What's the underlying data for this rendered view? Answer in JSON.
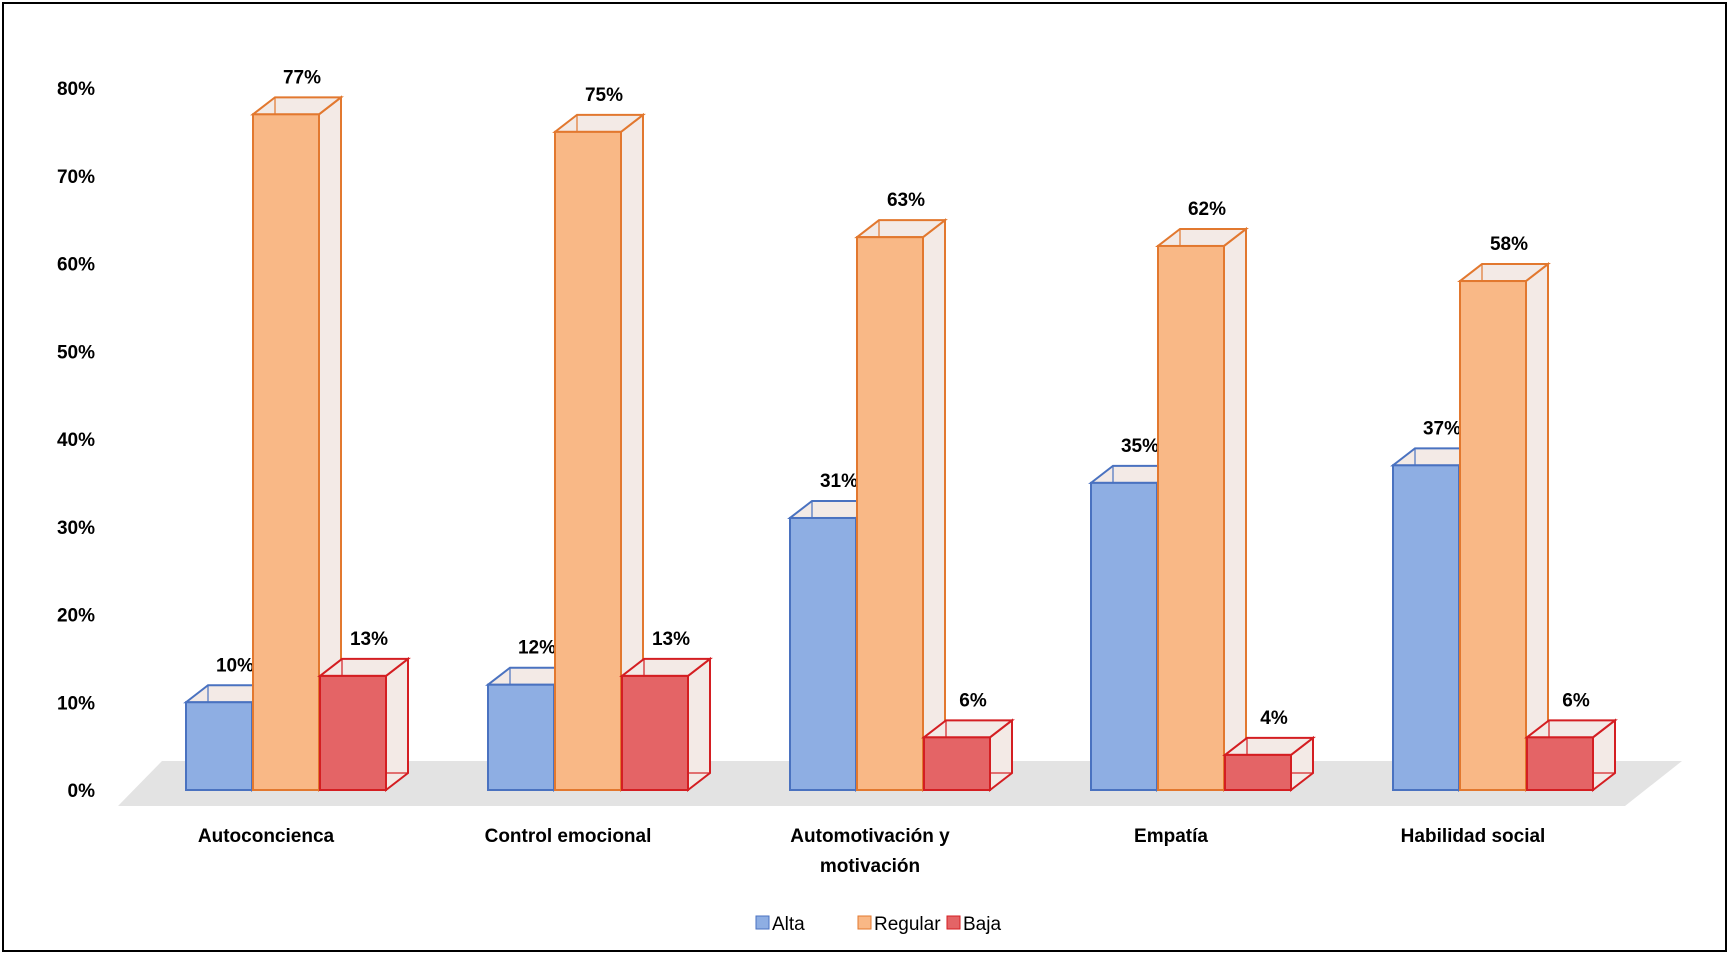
{
  "chart_data": {
    "type": "bar",
    "style": "3d-clustered-column",
    "categories": [
      "Autoconcienca",
      "Control emocional",
      "Automotivación y motivación",
      "Empatía",
      "Habilidad social"
    ],
    "category_lines": [
      [
        "Autoconcienca"
      ],
      [
        "Control emocional"
      ],
      [
        "Automotivación y",
        "motivación"
      ],
      [
        "Empatía"
      ],
      [
        "Habilidad social"
      ]
    ],
    "series": [
      {
        "name": "Alta",
        "values": [
          10,
          12,
          31,
          35,
          37
        ],
        "labels": [
          "10%",
          "12%",
          "31%",
          "35%",
          "37%"
        ],
        "color": "#8eaee3",
        "edge": "#4a72c0"
      },
      {
        "name": "Regular",
        "values": [
          77,
          75,
          63,
          62,
          58
        ],
        "labels": [
          "77%",
          "75%",
          "63%",
          "62%",
          "58%"
        ],
        "color": "#f9b886",
        "edge": "#e2782f"
      },
      {
        "name": "Baja",
        "values": [
          13,
          13,
          6,
          4,
          6
        ],
        "labels": [
          "13%",
          "13%",
          "6%",
          "4%",
          "6%"
        ],
        "color": "#e46466",
        "edge": "#d41e22"
      }
    ],
    "ylim": [
      0,
      80
    ],
    "yticks": [
      "0%",
      "10%",
      "20%",
      "30%",
      "40%",
      "50%",
      "60%",
      "70%",
      "80%"
    ],
    "legend_position": "bottom",
    "grid": false
  }
}
